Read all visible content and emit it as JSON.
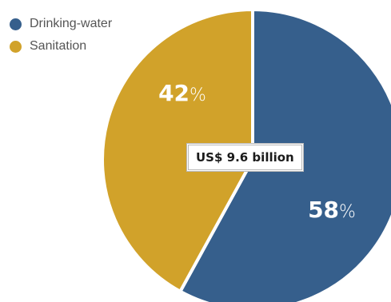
{
  "legend": [
    {
      "label": "Drinking-water",
      "color": "#365f8c"
    },
    {
      "label": "Sanitation",
      "color": "#d1a22a"
    }
  ],
  "center_label": "US$ 9.6 billion",
  "chart_data": {
    "type": "pie",
    "title": "",
    "total": "US$ 9.6 billion",
    "slices": [
      {
        "name": "Drinking-water",
        "value": 58,
        "label_number": "58",
        "label_unit": "%",
        "color": "#365f8c"
      },
      {
        "name": "Sanitation",
        "value": 42,
        "label_number": "42",
        "label_unit": "%",
        "color": "#d1a22a"
      }
    ]
  }
}
